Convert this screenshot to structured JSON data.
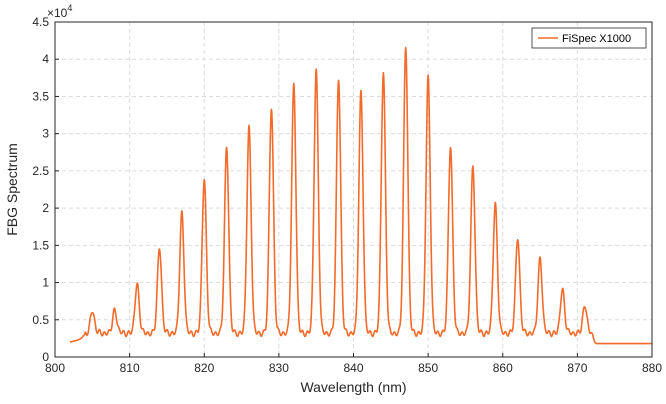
{
  "chart_data": {
    "type": "line",
    "xlabel": "Wavelength (nm)",
    "ylabel": "FBG Spectrum",
    "y_exponent_label": "×10",
    "y_exponent_power": "4",
    "xlim": [
      800,
      880
    ],
    "ylim": [
      0,
      4.5
    ],
    "y_scale_factor": 10000,
    "x_ticks": [
      "800",
      "810",
      "820",
      "830",
      "840",
      "850",
      "860",
      "870",
      "880"
    ],
    "y_ticks": [
      "0",
      "0.5",
      "1",
      "1.5",
      "2",
      "2.5",
      "3",
      "3.5",
      "4",
      "4.5"
    ],
    "grid": true,
    "legend_position": "top-right",
    "series": [
      {
        "name": "FiSpec X1000",
        "color": "#F26B2A",
        "x_start": 802,
        "x_end": 880,
        "baseline_left": 0.2,
        "baseline_right": 0.18,
        "peaks": [
          {
            "x": 805,
            "y": 0.62
          },
          {
            "x": 808,
            "y": 0.63
          },
          {
            "x": 811,
            "y": 0.98
          },
          {
            "x": 814,
            "y": 1.47
          },
          {
            "x": 817,
            "y": 1.93
          },
          {
            "x": 820,
            "y": 2.39
          },
          {
            "x": 823,
            "y": 2.82
          },
          {
            "x": 826,
            "y": 3.08
          },
          {
            "x": 829,
            "y": 3.35
          },
          {
            "x": 832,
            "y": 3.66
          },
          {
            "x": 835,
            "y": 3.85
          },
          {
            "x": 838,
            "y": 3.74
          },
          {
            "x": 841,
            "y": 3.55
          },
          {
            "x": 844,
            "y": 3.82
          },
          {
            "x": 847,
            "y": 4.17
          },
          {
            "x": 850,
            "y": 3.75
          },
          {
            "x": 853,
            "y": 2.83
          },
          {
            "x": 856,
            "y": 2.56
          },
          {
            "x": 859,
            "y": 2.05
          },
          {
            "x": 862,
            "y": 1.6
          },
          {
            "x": 865,
            "y": 1.32
          },
          {
            "x": 868,
            "y": 0.91
          },
          {
            "x": 871,
            "y": 0.69
          }
        ]
      }
    ]
  }
}
